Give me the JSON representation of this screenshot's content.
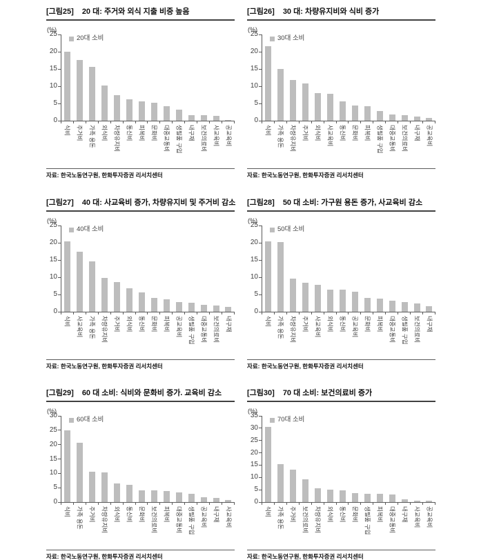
{
  "source_note": "자료: 한국노동연구원, 한화투자증권 리서치센터",
  "colors": {
    "bar": "#bdbdbd",
    "axis": "#595959",
    "title_rule": "#404040"
  },
  "chart_data": [
    {
      "type": "bar",
      "fig_label": "[그림25]",
      "title": "20 대: 주거와 외식 지출 비중 높음",
      "y_unit": "(%)",
      "legend": "20대 소비",
      "ylim": [
        0,
        25
      ],
      "ytick_step": 5,
      "grid": false,
      "legend_position": "top-left-inside",
      "categories": [
        "식비",
        "주거비",
        "가족 용돈",
        "외식비",
        "차량유지비",
        "통신비",
        "피복비",
        "문화비",
        "대중교통비",
        "생필품 구입",
        "내구재",
        "보건의료비",
        "사교육비",
        "공교육비"
      ],
      "values": [
        20.0,
        17.7,
        15.6,
        10.3,
        7.4,
        6.2,
        5.7,
        5.2,
        4.2,
        3.2,
        1.7,
        1.7,
        1.5,
        0.3
      ],
      "source": "자료: 한국노동연구원, 한화투자증권 리서치센터"
    },
    {
      "type": "bar",
      "fig_label": "[그림26]",
      "title": "30 대: 차량유지비와 식비 증가",
      "y_unit": "(%)",
      "legend": "30대 소비",
      "ylim": [
        0,
        25
      ],
      "ytick_step": 5,
      "grid": false,
      "legend_position": "top-left-inside",
      "categories": [
        "식비",
        "가족 용돈",
        "차량유지비",
        "주거비",
        "외식비",
        "사교육비",
        "통신비",
        "문화비",
        "피복비",
        "생필품 구입",
        "대중교통비",
        "보건의료비",
        "내구재",
        "공교육비"
      ],
      "values": [
        21.6,
        15.0,
        11.8,
        10.9,
        8.0,
        7.9,
        5.6,
        4.4,
        4.2,
        2.9,
        1.9,
        1.7,
        1.2,
        0.8
      ],
      "source": "자료: 한국노동연구원, 한화투자증권 리서치센터"
    },
    {
      "type": "bar",
      "fig_label": "[그림27]",
      "title": "40 대: 사교육비 증가, 차량유지비 및 주거비 감소",
      "y_unit": "(%)",
      "legend": "40대 소비",
      "ylim": [
        0,
        25
      ],
      "ytick_step": 5,
      "grid": false,
      "legend_position": "top-left-inside",
      "categories": [
        "식비",
        "사교육비",
        "가족 용돈",
        "차량유지비",
        "주거비",
        "외식비",
        "통신비",
        "문화비",
        "피복비",
        "공교육비",
        "생필품 구입",
        "대중교통비",
        "보건의료비",
        "내구재"
      ],
      "values": [
        20.5,
        17.5,
        14.6,
        9.9,
        8.7,
        6.8,
        5.6,
        4.1,
        3.7,
        2.8,
        2.6,
        2.1,
        1.9,
        1.4
      ],
      "source": "자료: 한국노동연구원, 한화투자증권 리서치센터"
    },
    {
      "type": "bar",
      "fig_label": "[그림28]",
      "title": "50 대 소비: 가구원 용돈 증가, 사교육비 감소",
      "y_unit": "(%)",
      "legend": "50대 소비",
      "ylim": [
        0,
        25
      ],
      "ytick_step": 5,
      "grid": false,
      "legend_position": "top-left-inside",
      "categories": [
        "식비",
        "가족 용돈",
        "차량유지비",
        "주거비",
        "사교육비",
        "외식비",
        "통신비",
        "공교육비",
        "문화비",
        "피복비",
        "대중교통비",
        "생필품 구입",
        "보건의료비",
        "내구재"
      ],
      "values": [
        20.5,
        20.3,
        9.7,
        8.4,
        7.9,
        6.5,
        6.4,
        5.9,
        4.0,
        3.8,
        3.2,
        2.8,
        2.5,
        1.6
      ],
      "source": "자료: 한국노동연구원, 한화투자증권 리서치센터"
    },
    {
      "type": "bar",
      "fig_label": "[그림29]",
      "title": "60 대 소비: 식비와 문화비 증가. 교육비 감소",
      "y_unit": "(%)",
      "legend": "60대 소비",
      "ylim": [
        0,
        30
      ],
      "ytick_step": 5,
      "grid": false,
      "legend_position": "top-left-inside",
      "categories": [
        "식비",
        "가족 용돈",
        "주거비",
        "차량유지비",
        "외식비",
        "통신비",
        "문화비",
        "보건의료비",
        "피복비",
        "대중교통비",
        "생필품 구입",
        "공교육비",
        "내구재",
        "사교육비"
      ],
      "values": [
        25.0,
        20.7,
        10.6,
        10.4,
        6.5,
        6.1,
        4.2,
        4.1,
        3.8,
        3.3,
        3.0,
        1.6,
        1.5,
        0.8
      ],
      "source": "자료: 한국노동연구원, 한화투자증권 리서치센터"
    },
    {
      "type": "bar",
      "fig_label": "[그림30]",
      "title": "70 대 소비: 보건의료비 증가",
      "y_unit": "(%)",
      "legend": "70대 소비",
      "ylim": [
        0,
        35
      ],
      "ytick_step": 5,
      "grid": false,
      "legend_position": "top-left-inside",
      "categories": [
        "식비",
        "가족 용돈",
        "주거비",
        "보건의료비",
        "차량유지비",
        "외식비",
        "통신비",
        "문화비",
        "생필품 구입",
        "피복비",
        "대중교통비",
        "내구재",
        "사교육비",
        "공교육비"
      ],
      "values": [
        30.5,
        15.3,
        13.2,
        9.2,
        5.7,
        5.1,
        4.8,
        3.7,
        3.5,
        3.3,
        3.1,
        1.1,
        0.6,
        0.5
      ],
      "source": "자료: 한국노동연구원, 한화투자증권 리서치센터"
    }
  ]
}
